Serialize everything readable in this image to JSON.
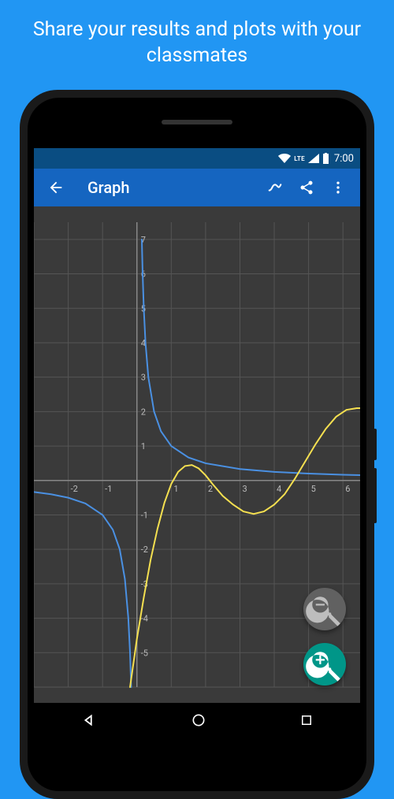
{
  "headline": "Share your results and plots with your classmates",
  "status": {
    "time": "7:00",
    "lte": "LTE"
  },
  "appbar": {
    "title": "Graph"
  },
  "graph": {
    "background": "#3a3a3a",
    "grid_color": "#555555",
    "axis_color": "#888888",
    "x_range": [
      -3,
      6.5
    ],
    "y_range": [
      -6,
      7.5
    ],
    "x_ticks": [
      -2,
      -1,
      1,
      2,
      3,
      4,
      5,
      6
    ],
    "y_ticks": [
      -5,
      -4,
      -3,
      -2,
      -1,
      1,
      2,
      3,
      4,
      5,
      6,
      7
    ],
    "label_color": "#bbbbbb",
    "label_fontsize": 11,
    "curves": [
      {
        "name": "reciprocal",
        "color": "#4a90e2",
        "width": 2,
        "segments": [
          [
            [
              -3,
              -0.333
            ],
            [
              -2.5,
              -0.4
            ],
            [
              -2,
              -0.5
            ],
            [
              -1.5,
              -0.667
            ],
            [
              -1,
              -1
            ],
            [
              -0.7,
              -1.43
            ],
            [
              -0.5,
              -2
            ],
            [
              -0.35,
              -2.86
            ],
            [
              -0.25,
              -4
            ],
            [
              -0.2,
              -5
            ],
            [
              -0.167,
              -6
            ]
          ],
          [
            [
              0.143,
              7
            ],
            [
              0.167,
              6
            ],
            [
              0.2,
              5
            ],
            [
              0.25,
              4
            ],
            [
              0.333,
              3
            ],
            [
              0.5,
              2
            ],
            [
              0.7,
              1.43
            ],
            [
              1,
              1
            ],
            [
              1.5,
              0.667
            ],
            [
              2,
              0.5
            ],
            [
              3,
              0.333
            ],
            [
              4,
              0.25
            ],
            [
              5,
              0.2
            ],
            [
              6,
              0.167
            ],
            [
              6.5,
              0.154
            ]
          ]
        ]
      },
      {
        "name": "cubic",
        "color": "#f5e050",
        "width": 2,
        "segments": [
          [
            [
              -0.2,
              -6
            ],
            [
              -0.1,
              -5.3
            ],
            [
              0,
              -4.6
            ],
            [
              0.2,
              -3.4
            ],
            [
              0.4,
              -2.3
            ],
            [
              0.6,
              -1.4
            ],
            [
              0.8,
              -0.65
            ],
            [
              1,
              -0.1
            ],
            [
              1.2,
              0.25
            ],
            [
              1.4,
              0.42
            ],
            [
              1.6,
              0.45
            ],
            [
              1.8,
              0.35
            ],
            [
              2,
              0.15
            ],
            [
              2.2,
              -0.1
            ],
            [
              2.5,
              -0.45
            ],
            [
              2.8,
              -0.7
            ],
            [
              3.1,
              -0.9
            ],
            [
              3.4,
              -0.97
            ],
            [
              3.7,
              -0.9
            ],
            [
              4,
              -0.7
            ],
            [
              4.3,
              -0.4
            ],
            [
              4.6,
              0.05
            ],
            [
              4.9,
              0.55
            ],
            [
              5.2,
              1.05
            ],
            [
              5.5,
              1.5
            ],
            [
              5.8,
              1.85
            ],
            [
              6.1,
              2.05
            ],
            [
              6.4,
              2.1
            ],
            [
              6.5,
              2.1
            ]
          ]
        ]
      }
    ]
  },
  "fab": {
    "zoom_out_bg": "#616161",
    "zoom_in_bg": "#009688"
  }
}
